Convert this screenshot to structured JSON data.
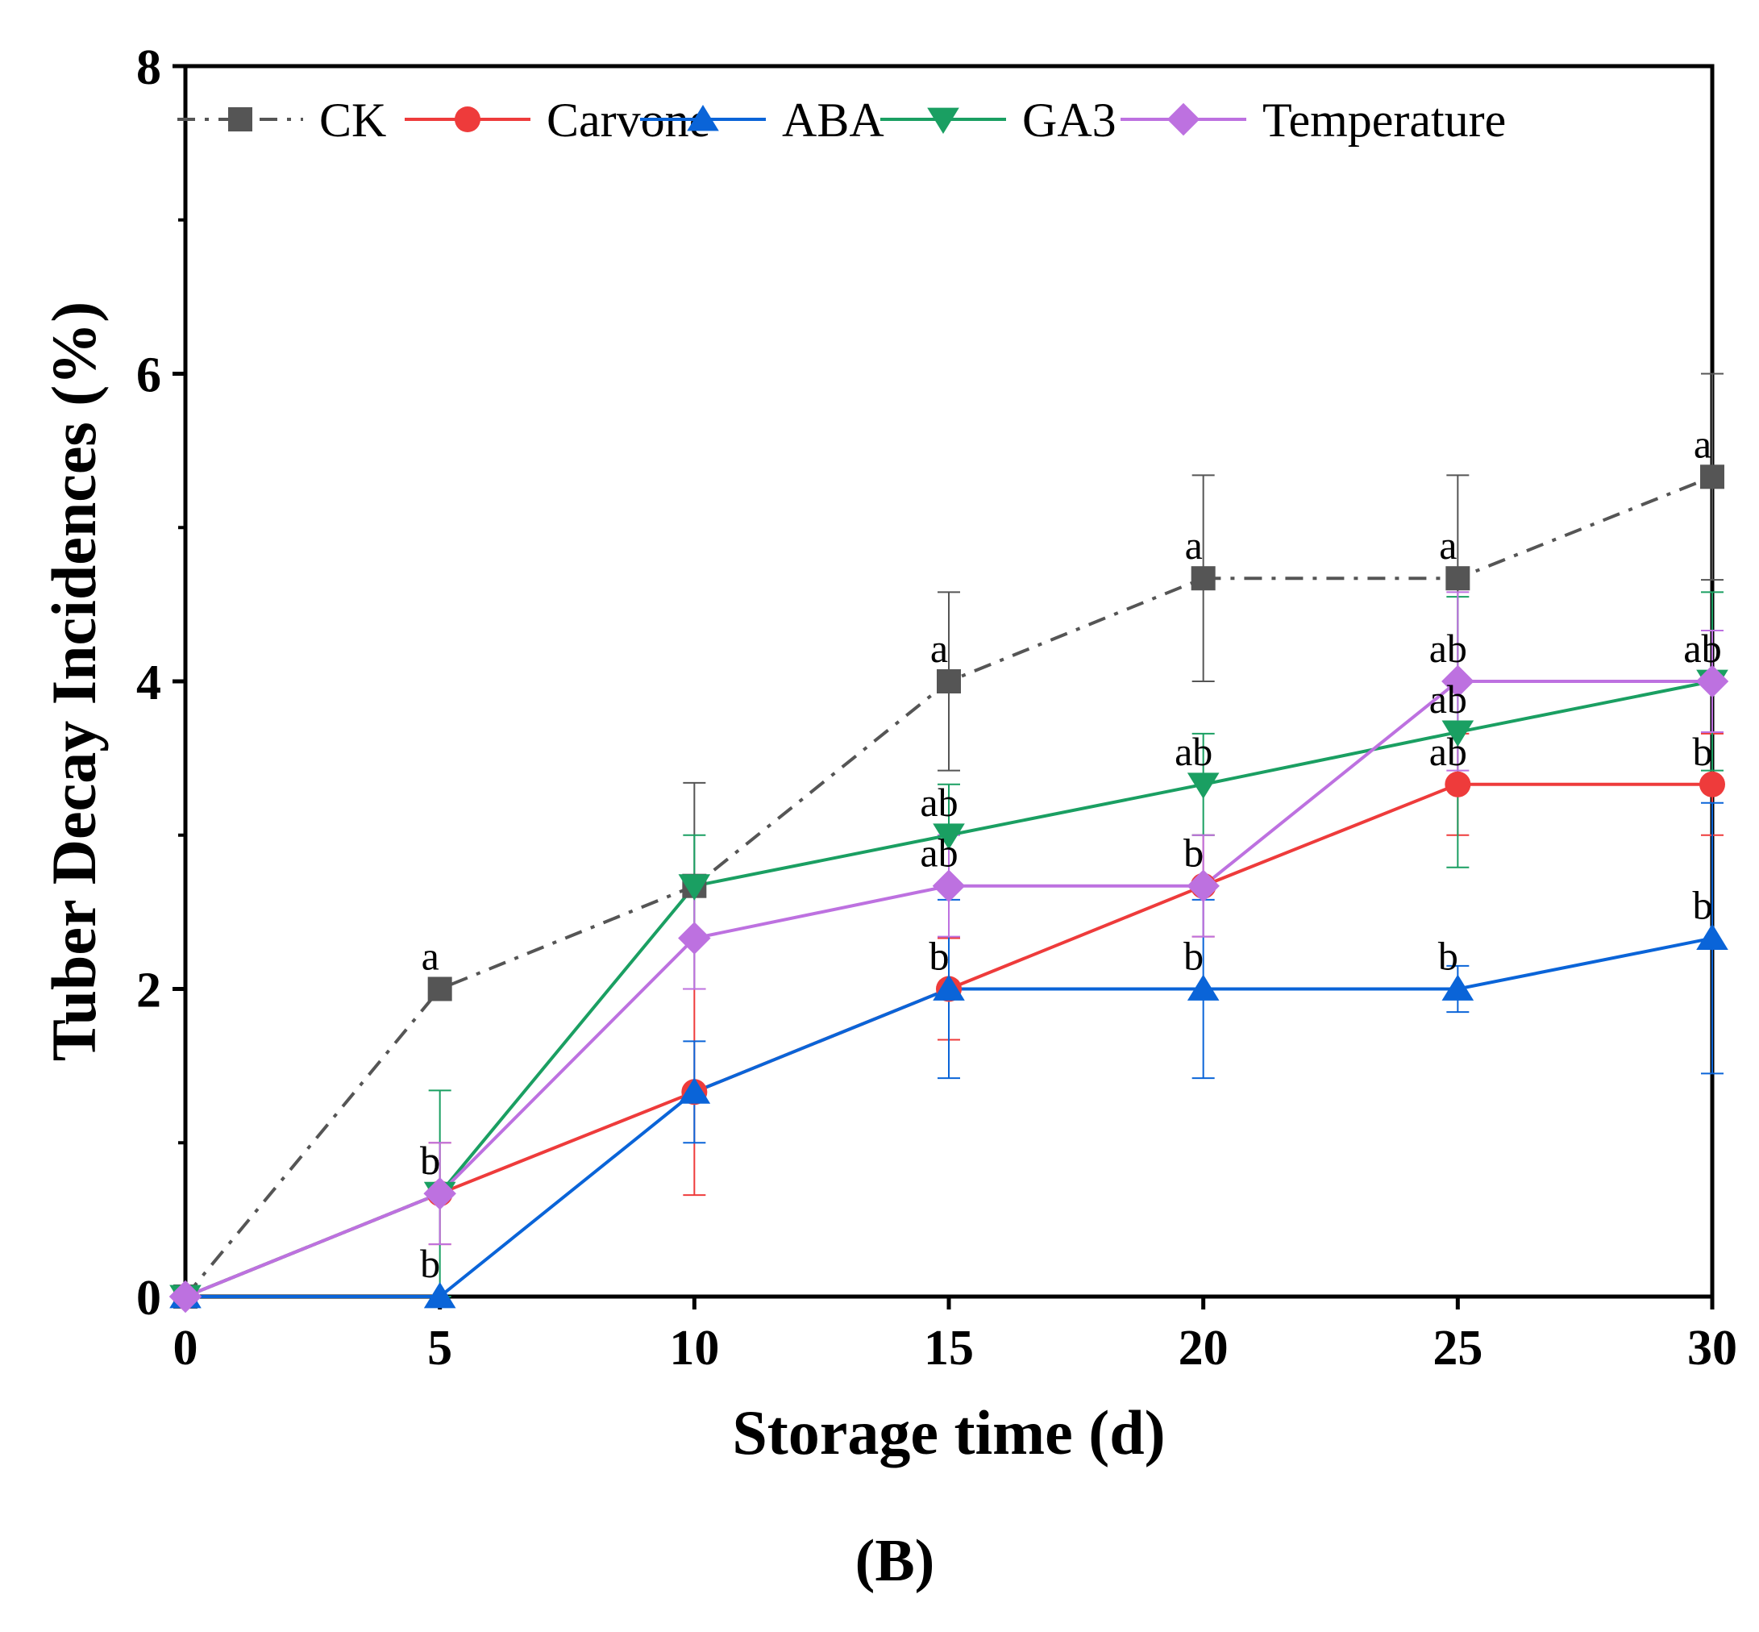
{
  "chart_data": {
    "type": "line",
    "title": "",
    "xlabel": "Storage time (d)",
    "ylabel": "Tuber Decay Incidences (%)",
    "panel_label": "(B)",
    "xlim": [
      0,
      30
    ],
    "ylim": [
      0,
      8
    ],
    "x_ticks": [
      0,
      5,
      10,
      15,
      20,
      25,
      30
    ],
    "x_tick_labels": [
      "0",
      "5",
      "10",
      "15",
      "20",
      "25",
      "30"
    ],
    "y_ticks": [
      0,
      2,
      4,
      6,
      8
    ],
    "y_tick_labels": [
      "0",
      "2",
      "4",
      "6",
      "8"
    ],
    "y_minor_ticks": [
      1,
      3,
      5,
      7
    ],
    "legend_position": "top",
    "x": [
      0,
      5,
      10,
      15,
      20,
      25,
      30
    ],
    "series": [
      {
        "name": "CK",
        "color": "#555555",
        "marker": "square",
        "line_style": "dash-dot",
        "values": [
          0,
          2.0,
          2.67,
          4.0,
          4.67,
          4.67,
          5.33
        ],
        "errors": [
          0,
          0,
          0.67,
          0.58,
          0.67,
          0.67,
          0.67
        ],
        "labels": [
          "",
          "a",
          "",
          "a",
          "a",
          "a",
          "a"
        ]
      },
      {
        "name": "Carvone",
        "color": "#ee3b3b",
        "marker": "circle",
        "line_style": "solid",
        "values": [
          0,
          0.67,
          1.33,
          2.0,
          2.67,
          3.33,
          3.33
        ],
        "errors": [
          0,
          0.33,
          0.67,
          0.33,
          0.33,
          0.33,
          0.33
        ],
        "labels": [
          "",
          "b",
          "",
          "b",
          "b",
          "ab",
          "b"
        ]
      },
      {
        "name": "ABA",
        "color": "#0a64d8",
        "marker": "triangle-up",
        "line_style": "solid",
        "values": [
          0,
          0,
          1.33,
          2.0,
          2.0,
          2.0,
          2.33
        ],
        "errors": [
          0,
          0,
          0.33,
          0.58,
          0.58,
          0.15,
          0.88
        ],
        "labels": [
          "",
          "b",
          "",
          "b",
          "b",
          "b",
          "b"
        ]
      },
      {
        "name": "GA3",
        "color": "#1a9f62",
        "marker": "triangle-down",
        "line_style": "solid",
        "values": [
          0,
          0.67,
          2.67,
          3.0,
          3.33,
          3.67,
          4.0
        ],
        "errors": [
          0,
          0.67,
          0.33,
          0.33,
          0.33,
          0.88,
          0.58
        ],
        "labels": [
          "",
          "b",
          "",
          "ab",
          "ab",
          "ab",
          "ab"
        ]
      },
      {
        "name": "Temperature",
        "color": "#bd71e0",
        "marker": "diamond",
        "line_style": "solid",
        "values": [
          0,
          0.67,
          2.33,
          2.67,
          2.67,
          4.0,
          4.0
        ],
        "errors": [
          0,
          0.33,
          0.33,
          0.33,
          0.33,
          0.58,
          0.33
        ],
        "labels": [
          "",
          "b",
          "",
          "ab",
          "b",
          "ab",
          "ab"
        ]
      }
    ]
  }
}
